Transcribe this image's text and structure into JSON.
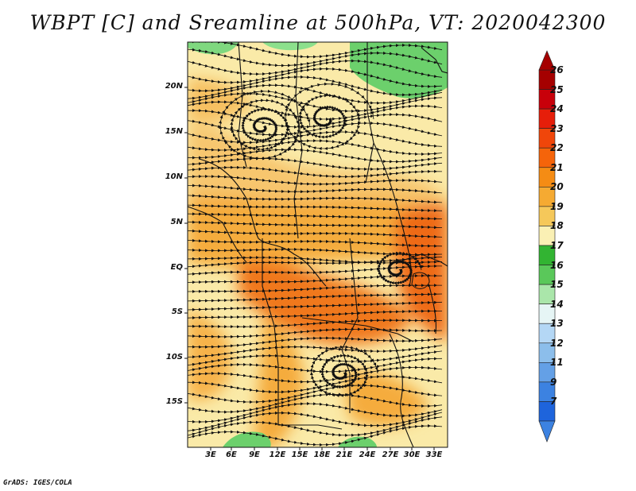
{
  "title": "WBPT [C] and Sreamline at 500hPa, VT: 2020042300",
  "credit": "GrADS: IGES/COLA",
  "lat_labels": [
    "20N",
    "15N",
    "10N",
    "5N",
    "EQ",
    "5S",
    "10S",
    "15S"
  ],
  "lon_labels": [
    "3E",
    "6E",
    "9E",
    "12E",
    "15E",
    "18E",
    "21E",
    "24E",
    "27E",
    "30E",
    "33E"
  ],
  "colorbar": {
    "levels": [
      "26",
      "25",
      "24",
      "23",
      "22",
      "21",
      "20",
      "19",
      "18",
      "17",
      "16",
      "15",
      "14",
      "13",
      "12",
      "11",
      "9",
      "7"
    ],
    "colors": [
      "#a50000",
      "#c8000a",
      "#e61e0a",
      "#f0460a",
      "#f5640a",
      "#f58c14",
      "#f5aa32",
      "#f5c85a",
      "#faf0b4",
      "#32b432",
      "#5ac85a",
      "#aae6aa",
      "#e6f5f5",
      "#b4d7f5",
      "#8cbeeb",
      "#64a0e6",
      "#3c82e1",
      "#1e64dc"
    ]
  },
  "colors": {
    "cool_green": "#6cd06c",
    "pale": "#faeaa8",
    "warm_orange": "#f5ac3c",
    "hot_orange": "#f0781e"
  }
}
